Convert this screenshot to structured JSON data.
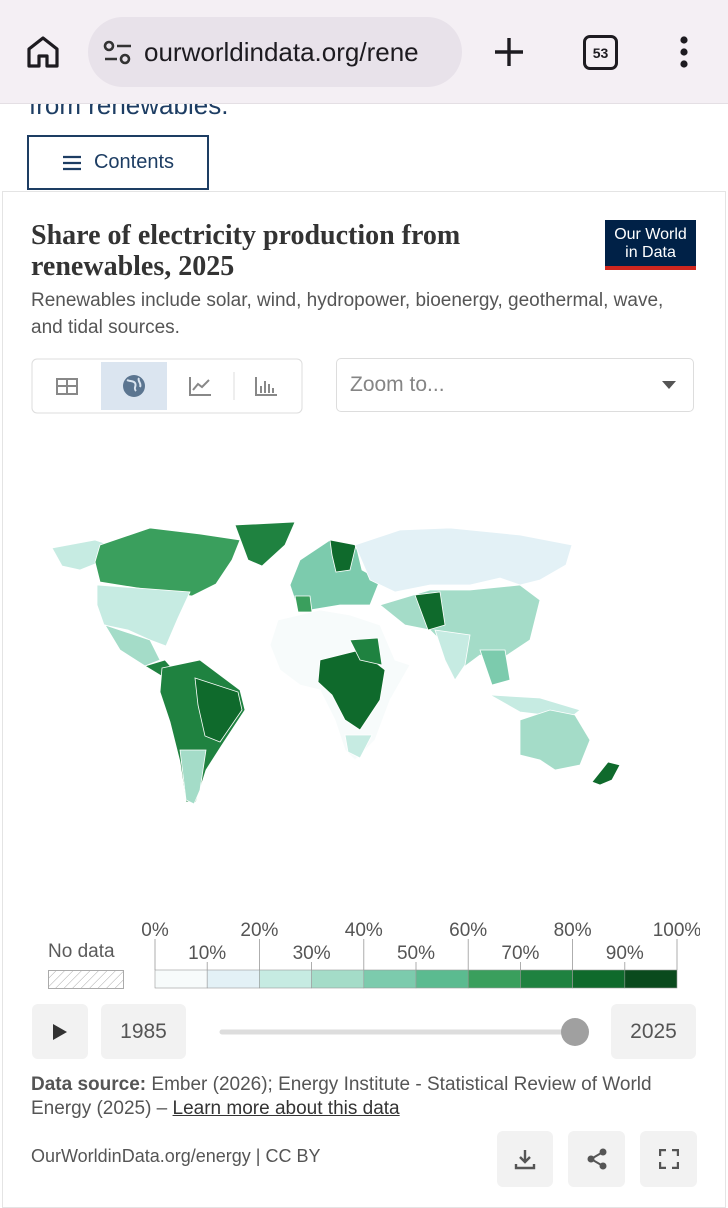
{
  "browser": {
    "url": "ourworldindata.org/rene",
    "tab_count": "53"
  },
  "page": {
    "heading_fragment": "from renewables.",
    "contents_button": "Contents"
  },
  "chart": {
    "title": "Share of electricity production from renewables, 2025",
    "logo": [
      "Our World",
      "in Data"
    ],
    "subtitle": "Renewables include solar, wind, hydropower, bioenergy, geothermal, wave, and tidal sources.",
    "zoom_placeholder": "Zoom to...",
    "legend": {
      "no_data": "No data",
      "labels": [
        "0%",
        "10%",
        "20%",
        "30%",
        "40%",
        "50%",
        "60%",
        "70%",
        "80%",
        "90%",
        "100%"
      ],
      "colors": [
        "#f7fbfb",
        "#e3f1f6",
        "#c6ebe2",
        "#a4dcc8",
        "#7ccbad",
        "#5bbb90",
        "#3a9f5d",
        "#1f8240",
        "#0f6a2c",
        "#0a4a1d"
      ]
    },
    "timeline": {
      "start": "1985",
      "end": "2025"
    },
    "source_label": "Data source:",
    "source_text": "Ember (2026); Energy Institute - Statistical Review of World Energy (2025) –",
    "learn_more": "Learn more about this data",
    "footer": "OurWorldinData.org/energy | CC BY"
  }
}
